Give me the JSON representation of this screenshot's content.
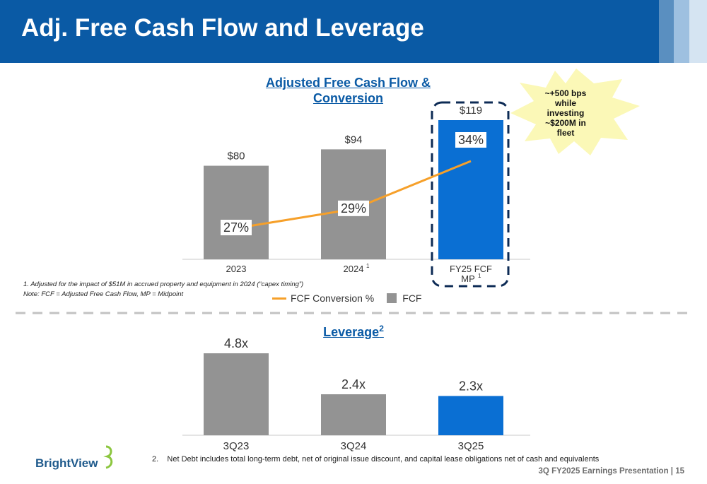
{
  "slide": {
    "title": "Adj. Free Cash Flow and Leverage",
    "footer": "3Q FY2025 Earnings Presentation | 15",
    "logo_text": "BrightView",
    "callout": "~+500 bps while investing ~$200M in fleet"
  },
  "notes": {
    "note1": "1. Adjusted for the impact of $51M in accrued property and equipment in 2024 (“capex timing”)",
    "note2": "Note: FCF = Adjusted Free Cash Flow, MP = Midpoint",
    "footnote2": "2.    Net Debt includes total long-term debt, net of original issue discount, and capital lease obligations net of cash and equivalents"
  },
  "colors": {
    "brand": "#0a5aa5",
    "bar_gray": "#939393",
    "bar_blue": "#0a6fd3",
    "line_orange": "#f6a02a",
    "dash_navy": "#0d2b55",
    "callout_fill": "#fbf8b7"
  },
  "chart_data": [
    {
      "type": "bar",
      "title": "Adjusted Free Cash Flow & Conversion",
      "categories": [
        "2023",
        "2024",
        "FY25 FCF MP"
      ],
      "category_superscripts": [
        "",
        "1",
        "1"
      ],
      "value_labels": [
        "$80",
        "$94",
        "$119"
      ],
      "ylim": [
        0,
        119
      ],
      "series": [
        {
          "name": "FCF",
          "kind": "bar",
          "values": [
            80,
            94,
            119
          ],
          "colors": [
            "#939393",
            "#939393",
            "#0a6fd3"
          ]
        },
        {
          "name": "FCF Conversion %",
          "kind": "line",
          "values": [
            27,
            29,
            34
          ],
          "labels": [
            "27%",
            "29%",
            "34%"
          ],
          "color": "#f6a02a",
          "ylim": [
            27,
            34
          ]
        }
      ],
      "legend": [
        "FCF Conversion %",
        "FCF"
      ],
      "legend_position": "bottom",
      "highlight": "FY25 FCF MP"
    },
    {
      "type": "bar",
      "title": "Leverage",
      "title_superscript": "2",
      "categories": [
        "3Q23",
        "3Q24",
        "3Q25"
      ],
      "values": [
        4.8,
        2.4,
        2.3
      ],
      "value_labels": [
        "4.8x",
        "2.4x",
        "2.3x"
      ],
      "colors": [
        "#939393",
        "#939393",
        "#0a6fd3"
      ],
      "ylim": [
        0,
        4.8
      ]
    }
  ]
}
